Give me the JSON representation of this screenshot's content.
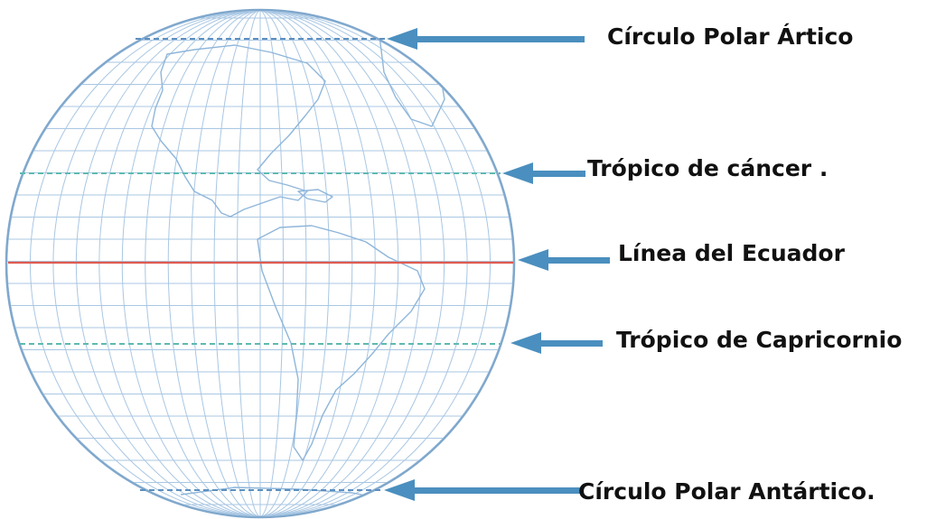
{
  "labels": {
    "arctic_circle": "Círculo Polar Ártico",
    "tropic_cancer": "Trópico de cáncer .",
    "equator": "Línea del Ecuador",
    "tropic_capricorn": "Trópico de Capricornio",
    "antarctic_circle": "Círculo Polar Antártico."
  },
  "colors": {
    "grid": "#a9c7e3",
    "outline": "#7fa7cc",
    "coast": "#8fb6da",
    "tropic_line": "#5fb9b0",
    "equator_line": "#e05a4f",
    "arrow": "#4a8fbf",
    "text": "#111111"
  }
}
